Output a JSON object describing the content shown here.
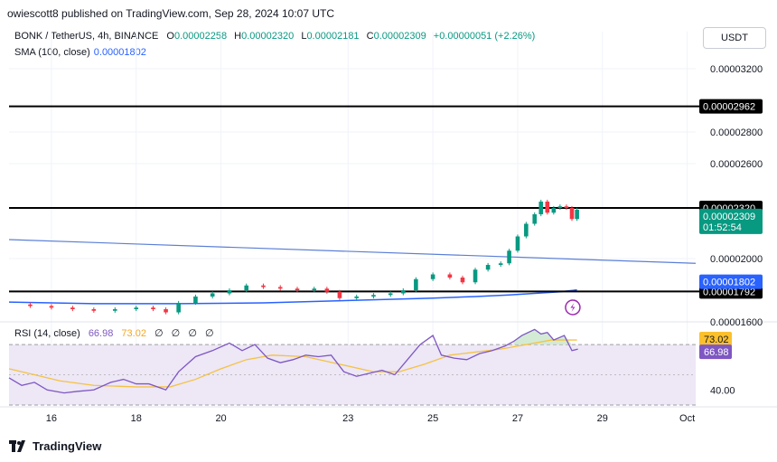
{
  "attribution": "owiescott8 published on TradingView.com, Sep 28, 2024 10:07 UTC",
  "header": {
    "symbol": "BONK / TetherUS, 4h, BINANCE",
    "open_label": "O",
    "open": "0.00002258",
    "high_label": "H",
    "high": "0.00002320",
    "low_label": "L",
    "low": "0.00002181",
    "close_label": "C",
    "close": "0.00002309",
    "change": "+0.00000051 (+2.26%)"
  },
  "sma_legend": {
    "label": "SMA (100, close)",
    "value": "0.00001802"
  },
  "currency_button": "USDT",
  "rsi_legend": {
    "label": "RSI (14, close)",
    "rsi": "66.98",
    "ma": "73.02",
    "zeros": [
      "∅",
      "∅",
      "∅",
      "∅"
    ]
  },
  "footer": {
    "brand": "TradingView"
  },
  "colors": {
    "up": "#089981",
    "down": "#f23645",
    "sma": "#2962ff",
    "rsi": "#7e57c2",
    "rsi_ma": "#f5c242",
    "rsi_band": "#ede7f6",
    "level": "#000000",
    "grid": "#f0f3fa"
  },
  "chart_data": [
    {
      "type": "candlestick",
      "ylim": [
        1.6e-05,
        3.32e-05
      ],
      "y_ticks": [
        {
          "value": 3.2e-05,
          "label": "0.00003200"
        },
        {
          "value": 2.8e-05,
          "label": "0.00002800"
        },
        {
          "value": 2.6e-05,
          "label": "0.00002600"
        },
        {
          "value": 2e-05,
          "label": "0.00002000"
        },
        {
          "value": 1.6e-05,
          "label": "0.00001600"
        }
      ],
      "x_ticks": [
        {
          "day": 16,
          "label": "16"
        },
        {
          "day": 18,
          "label": "18"
        },
        {
          "day": 20,
          "label": "20"
        },
        {
          "day": 23,
          "label": "23"
        },
        {
          "day": 25,
          "label": "25"
        },
        {
          "day": 27,
          "label": "27"
        },
        {
          "day": 29,
          "label": "29"
        },
        {
          "day": 31,
          "label": "Oct"
        }
      ],
      "horizontal_levels": [
        {
          "value": 2.962e-05,
          "label": "0.00002962"
        },
        {
          "value": 2.32e-05,
          "label": "0.00002320"
        },
        {
          "value": 1.792e-05,
          "label": "0.00001792"
        }
      ],
      "price_badges": [
        {
          "value": 2.309e-05,
          "label": "0.00002309",
          "sub": "01:52:54"
        },
        {
          "value": 1.802e-05,
          "label": "0.00001802"
        }
      ],
      "trendline": {
        "start": [
          15.0,
          2.12e-05
        ],
        "end": [
          31.2,
          1.97e-05
        ]
      },
      "sma_series": [
        [
          15.0,
          1.725e-05
        ],
        [
          17.0,
          1.715e-05
        ],
        [
          19.0,
          1.715e-05
        ],
        [
          21.0,
          1.72e-05
        ],
        [
          23.0,
          1.735e-05
        ],
        [
          25.0,
          1.75e-05
        ],
        [
          26.0,
          1.76e-05
        ],
        [
          26.8,
          1.77e-05
        ],
        [
          27.4,
          1.78e-05
        ],
        [
          28.0,
          1.79e-05
        ],
        [
          28.4,
          1.802e-05
        ]
      ],
      "close_series": [
        [
          15.1,
          1.71e-05
        ],
        [
          15.5,
          1.7e-05
        ],
        [
          16.0,
          1.69e-05
        ],
        [
          16.5,
          1.68e-05
        ],
        [
          17.0,
          1.67e-05
        ],
        [
          17.5,
          1.68e-05
        ],
        [
          18.0,
          1.69e-05
        ],
        [
          18.4,
          1.68e-05
        ],
        [
          18.7,
          1.66e-05
        ],
        [
          19.0,
          1.72e-05
        ],
        [
          19.4,
          1.76e-05
        ],
        [
          19.8,
          1.78e-05
        ],
        [
          20.2,
          1.8e-05
        ],
        [
          20.6,
          1.83e-05
        ],
        [
          21.0,
          1.82e-05
        ],
        [
          21.4,
          1.81e-05
        ],
        [
          21.8,
          1.8e-05
        ],
        [
          22.2,
          1.81e-05
        ],
        [
          22.5,
          1.79e-05
        ],
        [
          22.8,
          1.75e-05
        ],
        [
          23.2,
          1.76e-05
        ],
        [
          23.6,
          1.77e-05
        ],
        [
          24.0,
          1.78e-05
        ],
        [
          24.3,
          1.8e-05
        ],
        [
          24.6,
          1.87e-05
        ],
        [
          25.0,
          1.9e-05
        ],
        [
          25.4,
          1.88e-05
        ],
        [
          25.7,
          1.85e-05
        ],
        [
          26.0,
          1.93e-05
        ],
        [
          26.3,
          1.96e-05
        ],
        [
          26.6,
          1.97e-05
        ],
        [
          26.8,
          2.05e-05
        ],
        [
          27.0,
          2.14e-05
        ],
        [
          27.2,
          2.22e-05
        ],
        [
          27.4,
          2.28e-05
        ],
        [
          27.55,
          2.36e-05
        ],
        [
          27.7,
          2.29e-05
        ],
        [
          27.85,
          2.32e-05
        ],
        [
          28.0,
          2.33e-05
        ],
        [
          28.15,
          2.32e-05
        ],
        [
          28.28,
          2.25e-05
        ],
        [
          28.4,
          2.309e-05
        ]
      ]
    },
    {
      "type": "line",
      "name": "RSI (14, close)",
      "ylim": [
        30,
        85
      ],
      "y_ticks": [
        {
          "value": 40,
          "label": "40.00"
        }
      ],
      "band": [
        30,
        70
      ],
      "rsi_badges": [
        {
          "value": 73.02,
          "label": "73.02"
        },
        {
          "value": 66.98,
          "label": "66.98"
        }
      ],
      "rsi_series": [
        [
          15.0,
          48
        ],
        [
          15.3,
          43
        ],
        [
          15.6,
          45
        ],
        [
          15.9,
          40
        ],
        [
          16.3,
          38
        ],
        [
          16.6,
          39
        ],
        [
          17.0,
          40
        ],
        [
          17.4,
          45
        ],
        [
          17.7,
          47
        ],
        [
          18.0,
          44
        ],
        [
          18.3,
          44
        ],
        [
          18.7,
          40
        ],
        [
          19.0,
          52
        ],
        [
          19.4,
          62
        ],
        [
          19.8,
          66
        ],
        [
          20.2,
          71
        ],
        [
          20.5,
          66
        ],
        [
          20.8,
          70
        ],
        [
          21.1,
          61
        ],
        [
          21.4,
          58
        ],
        [
          21.7,
          60
        ],
        [
          22.0,
          63
        ],
        [
          22.3,
          62
        ],
        [
          22.6,
          63
        ],
        [
          22.9,
          52
        ],
        [
          23.2,
          49
        ],
        [
          23.5,
          51
        ],
        [
          23.8,
          53
        ],
        [
          24.1,
          50
        ],
        [
          24.4,
          60
        ],
        [
          24.7,
          70
        ],
        [
          25.0,
          76
        ],
        [
          25.2,
          63
        ],
        [
          25.5,
          61
        ],
        [
          25.8,
          60
        ],
        [
          26.1,
          64
        ],
        [
          26.4,
          66
        ],
        [
          26.7,
          69
        ],
        [
          26.9,
          72
        ],
        [
          27.1,
          76
        ],
        [
          27.4,
          80
        ],
        [
          27.55,
          77
        ],
        [
          27.7,
          78
        ],
        [
          27.85,
          73
        ],
        [
          28.1,
          76
        ],
        [
          28.28,
          66
        ],
        [
          28.42,
          67
        ]
      ],
      "rsi_ma_series": [
        [
          15.0,
          54
        ],
        [
          15.6,
          50
        ],
        [
          16.2,
          46
        ],
        [
          17.0,
          43
        ],
        [
          18.0,
          42
        ],
        [
          18.8,
          42
        ],
        [
          19.4,
          47
        ],
        [
          20.0,
          54
        ],
        [
          20.6,
          60
        ],
        [
          21.2,
          63
        ],
        [
          22.0,
          62
        ],
        [
          22.8,
          57
        ],
        [
          23.6,
          52
        ],
        [
          24.2,
          52
        ],
        [
          24.8,
          57
        ],
        [
          25.4,
          63
        ],
        [
          26.0,
          65
        ],
        [
          26.6,
          67
        ],
        [
          27.2,
          70
        ],
        [
          27.8,
          73
        ],
        [
          28.4,
          73.02
        ]
      ]
    }
  ]
}
